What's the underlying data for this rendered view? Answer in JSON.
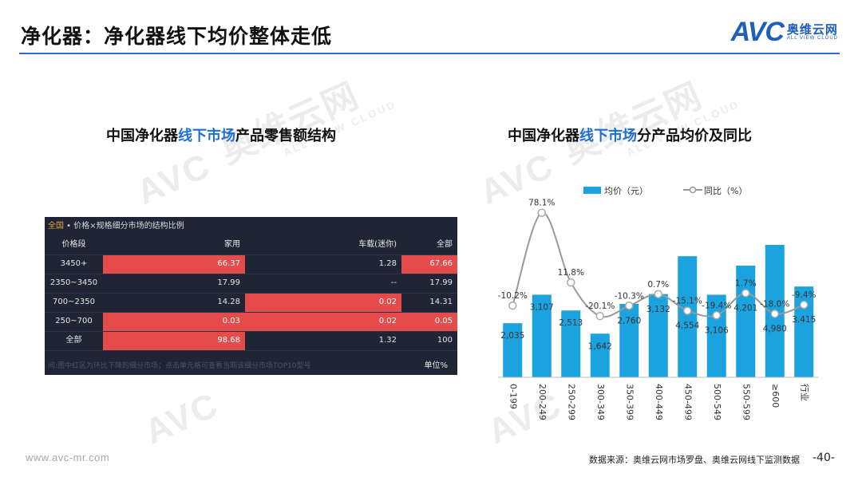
{
  "header": {
    "title": "净化器：净化器线下均价整体走低",
    "logo": {
      "mark": "AVC",
      "cn": "奥维云网",
      "en": "ALL VIEW CLOUD",
      "color": "#1f5fb8"
    }
  },
  "left_section": {
    "title_pre": "中国净化器",
    "title_highlight": "线下市场",
    "title_post": "产品零售额结构"
  },
  "right_section": {
    "title_pre": "中国净化器",
    "title_highlight": "线下市场",
    "title_post": "分产品均价及同比"
  },
  "table_panel": {
    "region": "全国",
    "subtitle": " • 价格×规格细分市场的结构比例",
    "headers": [
      "价格段",
      "家用",
      "车载(迷你)",
      "全部"
    ],
    "rows": [
      {
        "cells": [
          "3450+",
          "66.37",
          "1.28",
          "67.66"
        ],
        "red": [
          false,
          true,
          false,
          true
        ]
      },
      {
        "cells": [
          "2350~3450",
          "17.99",
          "--",
          "17.99"
        ],
        "red": [
          false,
          false,
          false,
          false
        ]
      },
      {
        "cells": [
          "700~2350",
          "14.28",
          "0.02",
          "14.31"
        ],
        "red": [
          false,
          false,
          true,
          false
        ]
      },
      {
        "cells": [
          "250~700",
          "0.03",
          "0.02",
          "0.05"
        ],
        "red": [
          false,
          true,
          true,
          true
        ]
      },
      {
        "cells": [
          "全部",
          "98.68",
          "1.32",
          "100"
        ],
        "red": [
          false,
          true,
          false,
          false
        ]
      }
    ],
    "note": "问:图中红区为环比下降的细分市场；点击单元格可查看当期该细分市场TOP10型号",
    "unit": "单位%",
    "highlight_color": "#e64b4b",
    "bg_color": "#1f2535"
  },
  "chart_data": {
    "type": "bar",
    "categories": [
      "0-199",
      "200-249",
      "250-299",
      "300-349",
      "350-399",
      "400-449",
      "450-499",
      "500-549",
      "550-599",
      "≥600",
      "行业"
    ],
    "series": [
      {
        "name": "均价（元）",
        "type": "bar",
        "color": "#1aa3df",
        "values": [
          2035,
          3107,
          2513,
          1642,
          2760,
          3132,
          4554,
          3106,
          4201,
          4980,
          3415
        ]
      },
      {
        "name": "同比（%）",
        "type": "line",
        "color": "#999999",
        "values": [
          -10.2,
          78.1,
          11.8,
          -20.1,
          -10.3,
          0.7,
          -15.1,
          -19.4,
          1.7,
          -18.0,
          -9.4
        ]
      }
    ],
    "bar_labels": [
      "2,035",
      "3,107",
      "2,513",
      "1,642",
      "2,760",
      "3,132",
      "4,554",
      "3,106",
      "4,201",
      "4,980",
      "3,415"
    ],
    "line_labels": [
      "-10.2%",
      "78.1%",
      "11.8%",
      "-20.1%",
      "-10.3%",
      "0.7%",
      "-15.1%",
      "-19.4%",
      "1.7%",
      "-18.0%",
      "-9.4%"
    ],
    "legend_position": "top",
    "grid": false,
    "ylim_bar": [
      0,
      6000
    ],
    "ylim_line": [
      -70,
      90
    ]
  },
  "footer": {
    "url": "www.avc-mr.com",
    "source": "数据来源：奥维云网市场罗盘、奥维云网线下监测数据",
    "page": "-40-"
  },
  "watermark": {
    "cn": "奥维云网",
    "en": "ALL VIEW CLOUD",
    "mark": "AVC"
  }
}
